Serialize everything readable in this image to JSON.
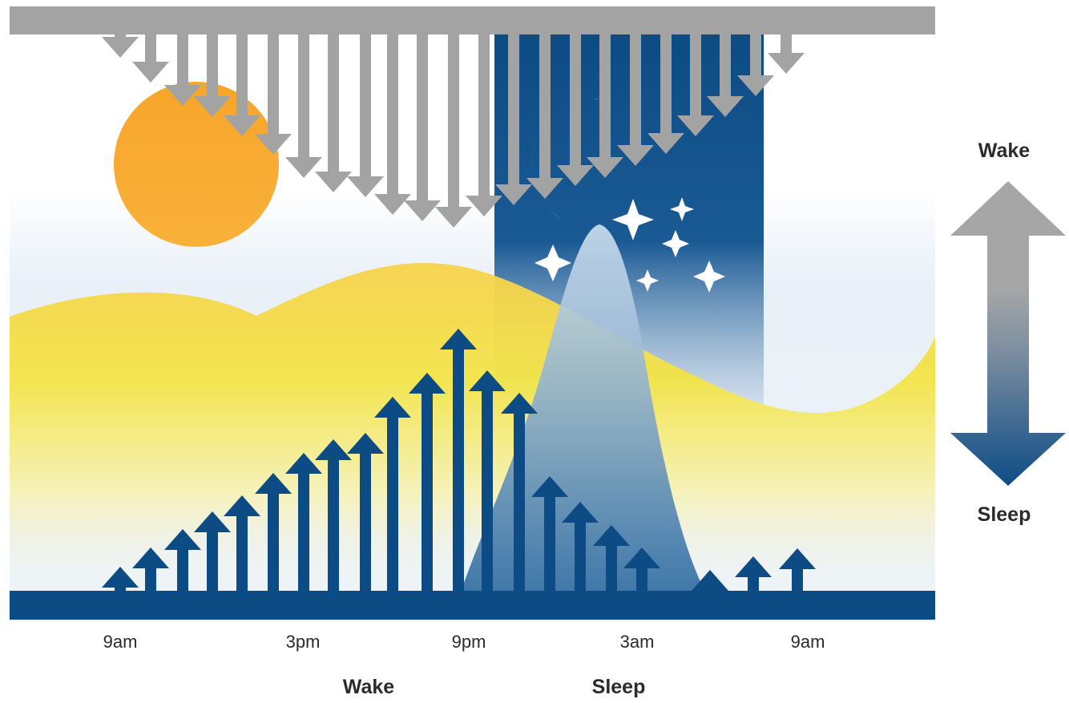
{
  "time_ticks": [
    "9am",
    "3pm",
    "9pm",
    "3am",
    "9am"
  ],
  "phase_labels": {
    "wake": "Wake",
    "sleep": "Sleep"
  },
  "scale": {
    "top_label": "Wake",
    "bottom_label": "Sleep"
  },
  "colors": {
    "navy": "#0d4b84",
    "gray": "#a3a3a3",
    "sun": "#f6a623",
    "yellow": "#f2e24a",
    "sky": "#e6eef6"
  },
  "icons": [
    "sun-icon",
    "moon-icon",
    "star-icon"
  ]
}
